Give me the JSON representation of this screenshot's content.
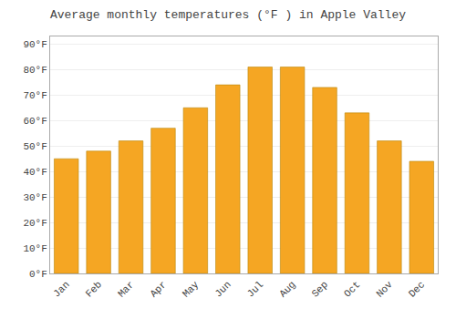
{
  "chart_data": {
    "type": "bar",
    "title": "Average monthly temperatures (°F ) in Apple Valley",
    "categories": [
      "Jan",
      "Feb",
      "Mar",
      "Apr",
      "May",
      "Jun",
      "Jul",
      "Aug",
      "Sep",
      "Oct",
      "Nov",
      "Dec"
    ],
    "values": [
      45,
      48,
      52,
      57,
      65,
      74,
      81,
      81,
      73,
      63,
      52,
      44
    ],
    "color": "#F5A623",
    "ylim": [
      0,
      93
    ],
    "yticks": [
      {
        "value": 0,
        "label": "0°F"
      },
      {
        "value": 10,
        "label": "10°F"
      },
      {
        "value": 20,
        "label": "20°F"
      },
      {
        "value": 30,
        "label": "30°F"
      },
      {
        "value": 40,
        "label": "40°F"
      },
      {
        "value": 50,
        "label": "50°F"
      },
      {
        "value": 60,
        "label": "60°F"
      },
      {
        "value": 70,
        "label": "70°F"
      },
      {
        "value": 80,
        "label": "80°F"
      },
      {
        "value": 90,
        "label": "90°F"
      }
    ],
    "grid": true
  }
}
